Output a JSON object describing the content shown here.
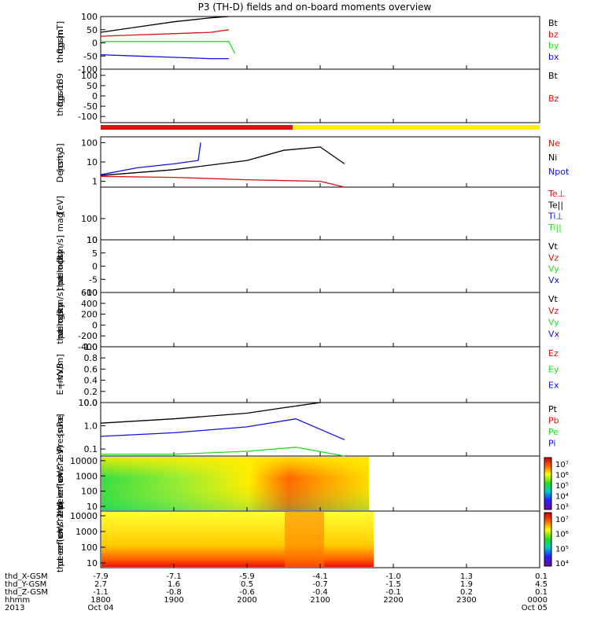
{
  "title": "P3 (TH-D) fields and on-board moments overview",
  "colors": {
    "black": "#000000",
    "red": "#dd1111",
    "green": "#22dd22",
    "blue": "#1111dd",
    "yellow": "#ffee00",
    "frame": "#000000"
  },
  "panels": [
    {
      "id": "fgs",
      "ylabel": [
        "thd",
        "fgs",
        "gsm",
        "[nT]"
      ],
      "yscale": "linear",
      "ylim": [
        -100,
        100
      ],
      "ticks": [
        "100",
        "50",
        "0",
        "-50",
        "-100"
      ],
      "legend": [
        {
          "label": "Bt",
          "color": "#000000"
        },
        {
          "label": "bz",
          "color": "#dd1111"
        },
        {
          "label": "by",
          "color": "#22dd22"
        },
        {
          "label": "bx",
          "color": "#1111dd"
        }
      ]
    },
    {
      "id": "fgs_dsl",
      "ylabel": [
        "thd",
        "fgs",
        "gsm",
        "-189"
      ],
      "yscale": "linear",
      "ylim": [
        -130,
        130
      ],
      "ticks": [
        "100",
        "50",
        "0",
        "-50",
        "-100"
      ],
      "legend": [
        {
          "label": "Bt",
          "color": "#000000"
        },
        {
          "label": "Bz",
          "color": "#dd1111"
        }
      ]
    },
    {
      "id": "density",
      "ylabel": [
        "Density",
        "[cm-3]"
      ],
      "yscale": "log",
      "ylim": [
        0.5,
        200
      ],
      "ticks": [
        "100",
        "10",
        "1"
      ],
      "legend": [
        {
          "label": "Ne",
          "color": "#dd1111"
        },
        {
          "label": "Ni",
          "color": "#000000"
        },
        {
          "label": "Npot",
          "color": "#1111dd"
        }
      ]
    },
    {
      "id": "temperature",
      "ylabel": [
        "mag",
        "T",
        "[eV]"
      ],
      "yscale": "log",
      "ylim": [
        10,
        3000
      ],
      "ticks": [
        "100",
        "10"
      ],
      "legend": [
        {
          "label": "Te⊥",
          "color": "#dd1111"
        },
        {
          "label": "Te||",
          "color": "#000000"
        },
        {
          "label": "Ti⊥",
          "color": "#1111dd"
        },
        {
          "label": "Ti||",
          "color": "#22dd22"
        }
      ]
    },
    {
      "id": "velocity_e",
      "ylabel": [
        "thd",
        "peim",
        "velocity",
        "dsl",
        "[km/s]"
      ],
      "yscale": "linear",
      "ylim": [
        -10,
        10
      ],
      "ticks": [
        "10",
        "5",
        "0",
        "-5",
        "-10"
      ],
      "legend": [
        {
          "label": "Vt",
          "color": "#000000"
        },
        {
          "label": "Vz",
          "color": "#dd1111"
        },
        {
          "label": "Vy",
          "color": "#22dd22"
        },
        {
          "label": "Vx",
          "color": "#1111dd"
        }
      ]
    },
    {
      "id": "velocity_i",
      "ylabel": [
        "thd",
        "peim",
        "velocity",
        "gsm",
        "[km/s]"
      ],
      "yscale": "linear",
      "ylim": [
        -400,
        600
      ],
      "ticks": [
        "600",
        "400",
        "200",
        "0",
        "-200",
        "-400"
      ],
      "legend": [
        {
          "label": "Vt",
          "color": "#000000"
        },
        {
          "label": "Vz",
          "color": "#dd1111"
        },
        {
          "label": "Vy",
          "color": "#22dd22"
        },
        {
          "label": "Vx",
          "color": "#1111dd"
        }
      ]
    },
    {
      "id": "efield",
      "ylabel": [
        "E=-VxB",
        "[mV/m]"
      ],
      "yscale": "linear",
      "ylim": [
        0,
        1
      ],
      "ticks": [
        "1.0",
        "0.8",
        "0.6",
        "0.4",
        "0.2",
        "0.0"
      ],
      "legend": [
        {
          "label": "Ez",
          "color": "#dd1111"
        },
        {
          "label": "Ey",
          "color": "#22dd22"
        },
        {
          "label": "Ex",
          "color": "#1111dd"
        }
      ]
    },
    {
      "id": "pressure",
      "ylabel": [
        "Pressure",
        "[nPa]"
      ],
      "yscale": "log",
      "ylim": [
        0.05,
        10
      ],
      "ticks": [
        "10.0",
        "1.0",
        "0.1"
      ],
      "legend": [
        {
          "label": "Pt",
          "color": "#000000"
        },
        {
          "label": "Pb",
          "color": "#dd1111"
        },
        {
          "label": "Pe",
          "color": "#22dd22"
        },
        {
          "label": "Pi",
          "color": "#1111dd"
        }
      ]
    },
    {
      "id": "ion_spec",
      "ylabel": [
        "thd",
        "peir",
        "en",
        "eflux",
        "eV/",
        "(cm^2-s-",
        "sr-eV)"
      ],
      "yscale": "log",
      "ylim": [
        5,
        20000
      ],
      "ticks": [
        "10000",
        "1000",
        "100",
        "10"
      ],
      "colorbar": [
        "10⁷",
        "10⁶",
        "10⁵",
        "10⁴",
        "10³"
      ]
    },
    {
      "id": "elec_spec",
      "ylabel": [
        "thd",
        "peer",
        "en",
        "eflux",
        "eV/",
        "(cm^2-s-",
        "sr-eV)"
      ],
      "yscale": "log",
      "ylim": [
        5,
        20000
      ],
      "ticks": [
        "10000",
        "1000",
        "100",
        "10"
      ],
      "colorbar": [
        "10⁷",
        "10⁶",
        "10⁵",
        "10⁴"
      ]
    }
  ],
  "chart_data": {
    "type": "line",
    "title": "P3 (TH-D) fields and on-board moments overview",
    "x_range": [
      "2013-10-04 18:00",
      "2013-10-05 00:00"
    ],
    "x_tick_labels": [
      "1800",
      "1900",
      "2000",
      "2100",
      "2200",
      "2300",
      "0000"
    ],
    "series": [
      {
        "name": "Bt",
        "panel": "fgs",
        "x": [
          "18:00",
          "18:30",
          "19:00",
          "19:30",
          "19:45"
        ],
        "values": [
          40,
          60,
          80,
          95,
          100
        ]
      },
      {
        "name": "bz",
        "panel": "fgs",
        "x": [
          "18:00",
          "18:30",
          "19:00",
          "19:30",
          "19:45"
        ],
        "values": [
          25,
          30,
          35,
          40,
          50
        ]
      },
      {
        "name": "by",
        "panel": "fgs",
        "x": [
          "18:00",
          "18:30",
          "19:00",
          "19:30",
          "19:45",
          "19:50"
        ],
        "values": [
          5,
          5,
          5,
          5,
          5,
          -40
        ]
      },
      {
        "name": "bx",
        "panel": "fgs",
        "x": [
          "18:00",
          "18:30",
          "19:00",
          "19:30",
          "19:45"
        ],
        "values": [
          -45,
          -50,
          -55,
          -60,
          -60
        ]
      },
      {
        "name": "Ni",
        "panel": "density",
        "x": [
          "18:00",
          "19:00",
          "20:00",
          "20:30",
          "21:00",
          "21:20"
        ],
        "values": [
          2,
          4,
          12,
          40,
          60,
          8
        ]
      },
      {
        "name": "Ne",
        "panel": "density",
        "x": [
          "18:00",
          "19:00",
          "20:00",
          "21:00",
          "21:20"
        ],
        "values": [
          1.8,
          1.6,
          1.2,
          1.0,
          0.5
        ]
      },
      {
        "name": "Npot",
        "panel": "density",
        "x": [
          "18:00",
          "18:30",
          "19:00",
          "19:20",
          "19:22"
        ],
        "values": [
          2.2,
          5,
          8,
          12,
          100
        ]
      },
      {
        "name": "Pt",
        "panel": "pressure",
        "x": [
          "18:00",
          "19:00",
          "20:00",
          "20:30",
          "21:00"
        ],
        "values": [
          1.3,
          2,
          3.5,
          6,
          10
        ]
      },
      {
        "name": "Pi",
        "panel": "pressure",
        "x": [
          "18:00",
          "19:00",
          "20:00",
          "20:40",
          "21:20"
        ],
        "values": [
          0.35,
          0.5,
          0.9,
          2,
          0.25
        ]
      },
      {
        "name": "Pe",
        "panel": "pressure",
        "x": [
          "18:00",
          "19:00",
          "20:00",
          "20:40",
          "21:20"
        ],
        "values": [
          0.06,
          0.06,
          0.08,
          0.12,
          0.05
        ]
      }
    ],
    "ephemeris": {
      "labels": [
        "thd_X-GSM",
        "thd_Y-GSM",
        "thd_Z-GSM",
        "hhmm",
        "2013"
      ],
      "X": [
        "-7.9",
        "-7.1",
        "-5.9",
        "-4.1",
        "-1.0",
        "1.3",
        "0.1"
      ],
      "Y": [
        "2.7",
        "1.6",
        "0.5",
        "-0.7",
        "-1.5",
        "1.9",
        "4.5"
      ],
      "Z": [
        "-1.1",
        "-0.8",
        "-0.6",
        "-0.4",
        "-0.1",
        "0.2",
        "0.1"
      ],
      "hhmm": [
        "1800",
        "1900",
        "2000",
        "2100",
        "2200",
        "2300",
        "0000"
      ],
      "date_start": "Oct 04",
      "date_end": "Oct 05"
    }
  }
}
